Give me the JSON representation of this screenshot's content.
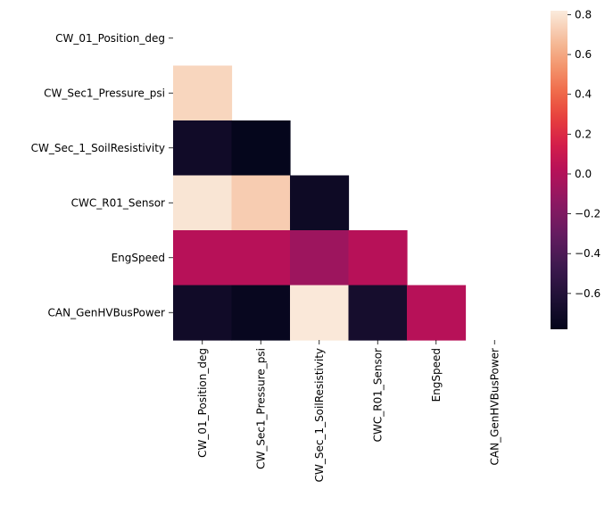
{
  "chart_data": {
    "type": "heatmap",
    "title": "",
    "xlabel": "",
    "ylabel": "",
    "labels": [
      "CW_01_Position_deg",
      "CW_Sec1_Pressure_psi",
      "CW_Sec_1_SoilResistivity",
      "CWC_R01_Sensor",
      "EngSpeed",
      "CAN_GenHVBusPower"
    ],
    "mask": "upper-triangle-and-diagonal",
    "matrix": [
      [
        null,
        null,
        null,
        null,
        null,
        null
      ],
      [
        0.75,
        null,
        null,
        null,
        null,
        null
      ],
      [
        -0.7,
        -0.77,
        null,
        null,
        null,
        null
      ],
      [
        0.8,
        0.72,
        -0.72,
        null,
        null,
        null
      ],
      [
        0.02,
        0.02,
        -0.08,
        0.02,
        null,
        null
      ],
      [
        -0.7,
        -0.75,
        0.81,
        -0.67,
        0.02,
        null
      ]
    ],
    "colorbar": {
      "vmin": -0.78,
      "vmax": 0.82,
      "ticks": [
        -0.6,
        -0.4,
        -0.2,
        0.0,
        0.2,
        0.4,
        0.6,
        0.8
      ],
      "tick_labels": [
        "−0.6",
        "−0.4",
        "−0.2",
        "0.0",
        "0.2",
        "0.4",
        "0.6",
        "0.8"
      ],
      "colormap": "rocket"
    }
  }
}
